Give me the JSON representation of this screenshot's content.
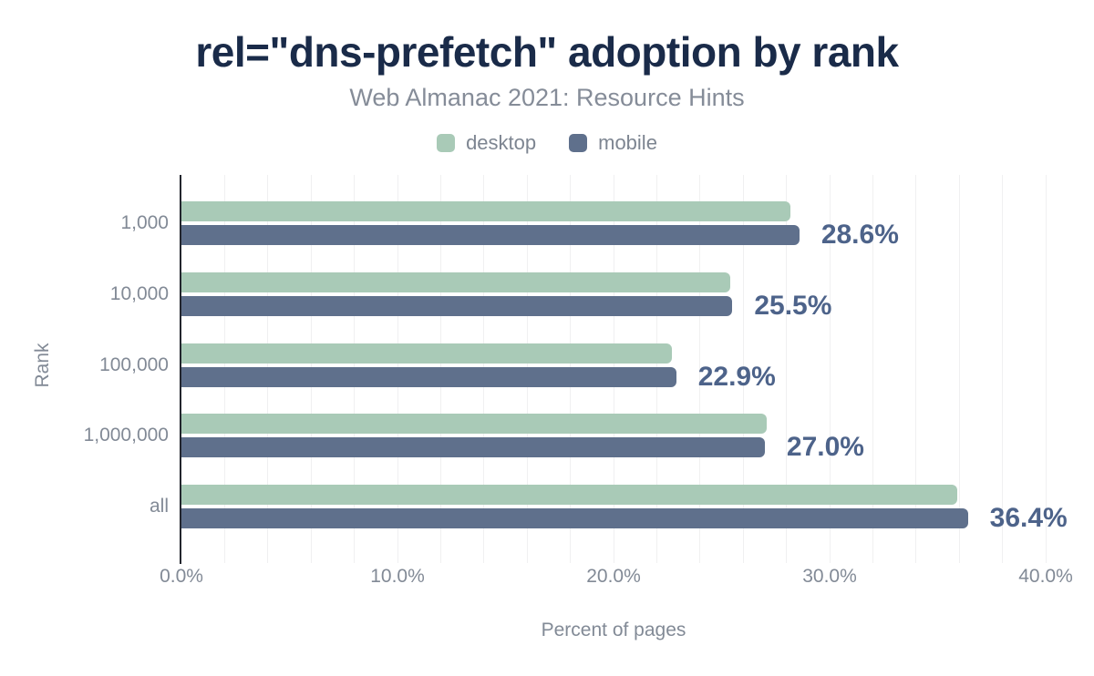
{
  "header": {
    "title": "rel=\"dns-prefetch\" adoption by rank",
    "subtitle": "Web Almanac 2021: Resource Hints"
  },
  "legend": {
    "items": [
      {
        "label": "desktop",
        "color": "#a9cab7"
      },
      {
        "label": "mobile",
        "color": "#5f708c"
      }
    ]
  },
  "axes": {
    "x_label": "Percent of pages",
    "y_label": "Rank"
  },
  "colors": {
    "title": "#1a2b49",
    "subtitle": "#858c98",
    "axis_text": "#828a96",
    "desktop_bar": "#a9cab7",
    "mobile_bar": "#5f708c",
    "value_label": "#4d638a",
    "axis_line": "#23262e",
    "gridline": "#f0f0f1"
  },
  "chart_data": {
    "type": "bar",
    "orientation": "horizontal",
    "title": "rel=\"dns-prefetch\" adoption by rank",
    "subtitle": "Web Almanac 2021: Resource Hints",
    "categories": [
      "1,000",
      "10,000",
      "100,000",
      "1,000,000",
      "all"
    ],
    "series": [
      {
        "name": "desktop",
        "color": "#a9cab7",
        "values": [
          28.2,
          25.4,
          22.7,
          27.1,
          35.9
        ]
      },
      {
        "name": "mobile",
        "color": "#5f708c",
        "values": [
          28.6,
          25.5,
          22.9,
          27.0,
          36.4
        ]
      }
    ],
    "value_labels": [
      "28.6%",
      "25.5%",
      "22.9%",
      "27.0%",
      "36.4%"
    ],
    "value_labels_series": "mobile",
    "xlabel": "Percent of pages",
    "ylabel": "Rank",
    "xlim": [
      0,
      40
    ],
    "x_ticks": [
      "0.0%",
      "10.0%",
      "20.0%",
      "30.0%",
      "40.0%"
    ],
    "x_tick_step": 10,
    "gridline_step": 2,
    "grid": true,
    "legend_position": "top"
  }
}
